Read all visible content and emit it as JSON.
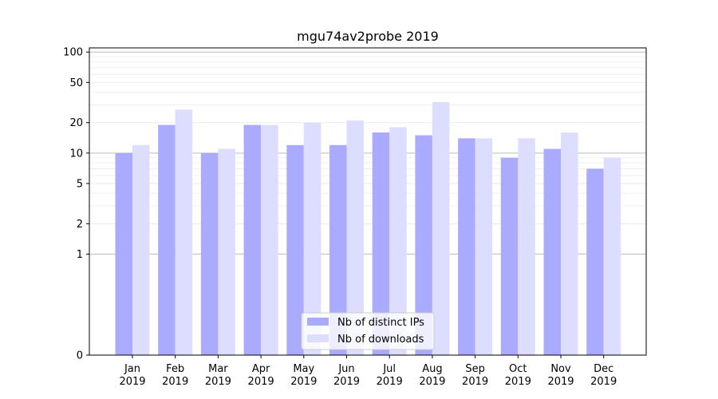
{
  "chart_data": {
    "type": "bar",
    "title": "mgu74av2probe 2019",
    "xlabel": "",
    "ylabel": "",
    "y_scale": "symlog",
    "y_ticks": [
      0,
      1,
      2,
      5,
      10,
      20,
      50,
      100
    ],
    "y_tick_labels": [
      "0",
      "1",
      "2",
      "5",
      "10",
      "20",
      "50",
      "100"
    ],
    "ylim": [
      0,
      110
    ],
    "categories": [
      "Jan",
      "Feb",
      "Mar",
      "Apr",
      "May",
      "Jun",
      "Jul",
      "Aug",
      "Sep",
      "Oct",
      "Nov",
      "Dec"
    ],
    "category_years": [
      "2019",
      "2019",
      "2019",
      "2019",
      "2019",
      "2019",
      "2019",
      "2019",
      "2019",
      "2019",
      "2019",
      "2019"
    ],
    "series": [
      {
        "name": "Nb of distinct IPs",
        "color": "#aaaaff",
        "values": [
          10,
          19,
          10,
          19,
          12,
          12,
          16,
          15,
          14,
          9,
          11,
          7
        ]
      },
      {
        "name": "Nb of downloads",
        "color": "#ddddff",
        "values": [
          12,
          27,
          11,
          19,
          20,
          21,
          18,
          32,
          14,
          14,
          16,
          9
        ]
      }
    ],
    "legend_position": "bottom-center",
    "grid": true
  }
}
